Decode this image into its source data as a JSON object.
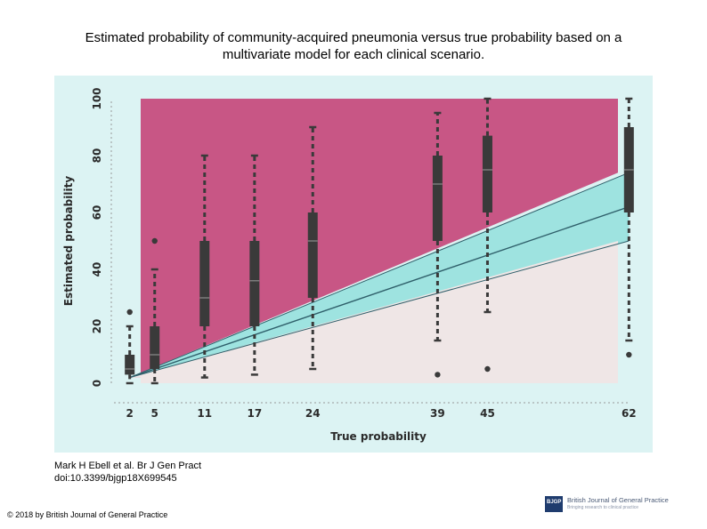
{
  "title_line1": "Estimated probability of community-acquired pneumonia versus true probability based on a",
  "title_line2": "multivariate model for each clinical scenario.",
  "citation": {
    "authors": "Mark H Ebell et al. Br J Gen Pract",
    "doi": "doi:10.3399/bjgp18X699545"
  },
  "copyright": "© 2018 by British Journal of General Practice",
  "logo": {
    "mark": "BJGP",
    "name": "British Journal of General Practice",
    "tagline": "Bringing research to clinical practice"
  },
  "colors": {
    "panel_bg": "#dcf3f3",
    "over_region": "#c85685",
    "band_region": "#9ee3e0",
    "under_region": "#efe6e6",
    "box": "#3a3a3a",
    "axis_text": "#2a2a2a"
  },
  "chart_data": {
    "type": "box",
    "title": "Estimated probability of community-acquired pneumonia versus true probability based on a multivariate model for each clinical scenario.",
    "xlabel": "True probability",
    "ylabel": "Estimated probability",
    "xlim": [
      0,
      64
    ],
    "ylim": [
      0,
      100
    ],
    "x_ticks": [
      2,
      5,
      11,
      17,
      24,
      39,
      45,
      62
    ],
    "y_ticks": [
      0,
      20,
      40,
      60,
      80,
      100
    ],
    "identity_line": {
      "x": [
        2,
        62
      ],
      "y": [
        2,
        62
      ]
    },
    "band": {
      "x": [
        2,
        62
      ],
      "upper": [
        2,
        74
      ],
      "lower": [
        2,
        50
      ]
    },
    "boxes": [
      {
        "x": 2,
        "whisker_low": 0,
        "q1": 3,
        "median": 5,
        "q3": 10,
        "whisker_high": 20,
        "outliers": [
          25
        ]
      },
      {
        "x": 5,
        "whisker_low": 0,
        "q1": 5,
        "median": 10,
        "q3": 20,
        "whisker_high": 40,
        "outliers": [
          50
        ]
      },
      {
        "x": 11,
        "whisker_low": 2,
        "q1": 20,
        "median": 30,
        "q3": 50,
        "whisker_high": 80,
        "outliers": []
      },
      {
        "x": 17,
        "whisker_low": 3,
        "q1": 20,
        "median": 36,
        "q3": 50,
        "whisker_high": 80,
        "outliers": []
      },
      {
        "x": 24,
        "whisker_low": 5,
        "q1": 30,
        "median": 50,
        "q3": 60,
        "whisker_high": 90,
        "outliers": []
      },
      {
        "x": 39,
        "whisker_low": 15,
        "q1": 50,
        "median": 70,
        "q3": 80,
        "whisker_high": 95,
        "outliers": [
          3
        ]
      },
      {
        "x": 45,
        "whisker_low": 25,
        "q1": 60,
        "median": 75,
        "q3": 87,
        "whisker_high": 100,
        "outliers": [
          5
        ]
      },
      {
        "x": 62,
        "whisker_low": 15,
        "q1": 60,
        "median": 75,
        "q3": 90,
        "whisker_high": 100,
        "outliers": [
          10
        ]
      }
    ]
  }
}
